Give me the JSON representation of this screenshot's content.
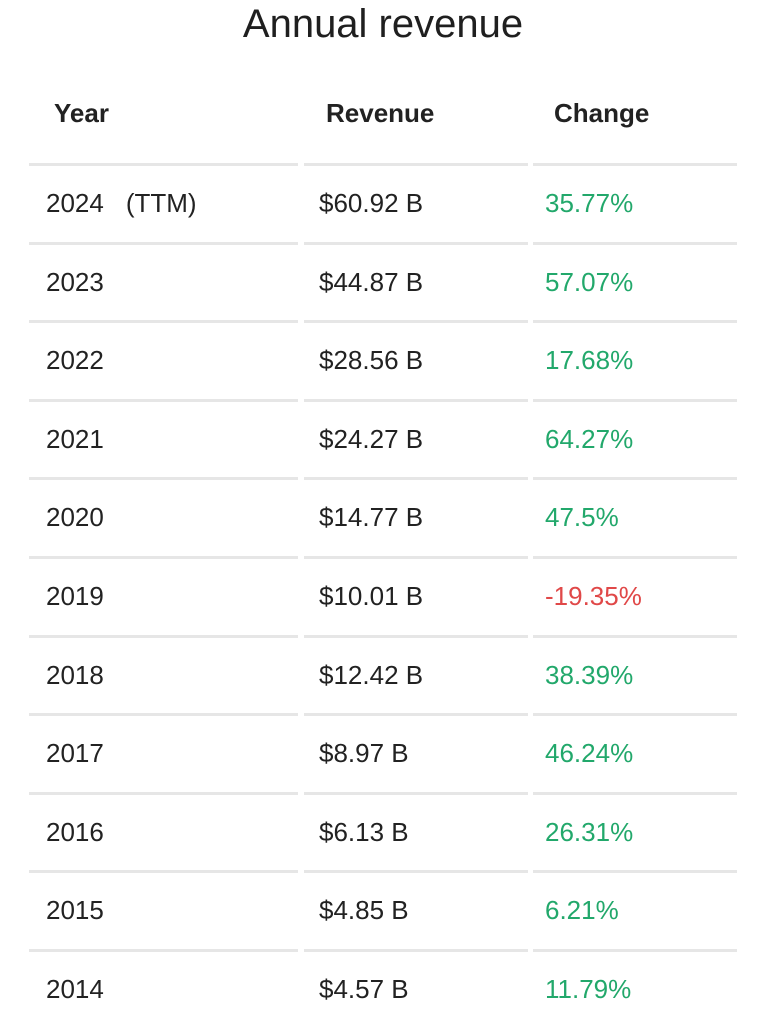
{
  "title": "Annual revenue",
  "columns": {
    "year": "Year",
    "revenue": "Revenue",
    "change": "Change"
  },
  "colors": {
    "positive": "#22a86b",
    "negative": "#e04848",
    "divider": "#e6e6e6"
  },
  "rows": [
    {
      "year": "2024",
      "note": "(TTM)",
      "revenue": "$60.92 B",
      "change": "35.77%",
      "direction": "positive"
    },
    {
      "year": "2023",
      "note": "",
      "revenue": "$44.87 B",
      "change": "57.07%",
      "direction": "positive"
    },
    {
      "year": "2022",
      "note": "",
      "revenue": "$28.56 B",
      "change": "17.68%",
      "direction": "positive"
    },
    {
      "year": "2021",
      "note": "",
      "revenue": "$24.27 B",
      "change": "64.27%",
      "direction": "positive"
    },
    {
      "year": "2020",
      "note": "",
      "revenue": "$14.77 B",
      "change": "47.5%",
      "direction": "positive"
    },
    {
      "year": "2019",
      "note": "",
      "revenue": "$10.01 B",
      "change": "-19.35%",
      "direction": "negative"
    },
    {
      "year": "2018",
      "note": "",
      "revenue": "$12.42 B",
      "change": "38.39%",
      "direction": "positive"
    },
    {
      "year": "2017",
      "note": "",
      "revenue": "$8.97 B",
      "change": "46.24%",
      "direction": "positive"
    },
    {
      "year": "2016",
      "note": "",
      "revenue": "$6.13 B",
      "change": "26.31%",
      "direction": "positive"
    },
    {
      "year": "2015",
      "note": "",
      "revenue": "$4.85 B",
      "change": "6.21%",
      "direction": "positive"
    },
    {
      "year": "2014",
      "note": "",
      "revenue": "$4.57 B",
      "change": "11.79%",
      "direction": "positive"
    }
  ]
}
